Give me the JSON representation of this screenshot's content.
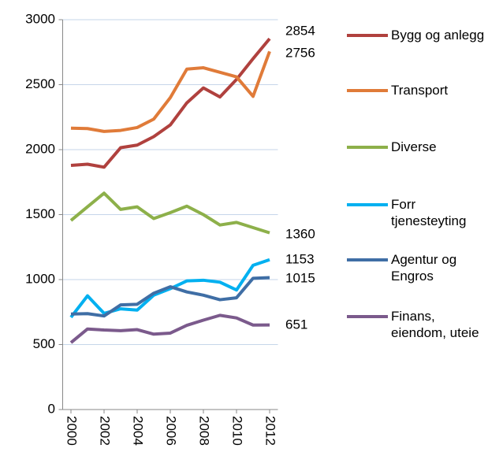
{
  "chart_data": {
    "type": "line",
    "x": [
      2000,
      2001,
      2002,
      2003,
      2004,
      2005,
      2006,
      2007,
      2008,
      2009,
      2010,
      2011,
      2012
    ],
    "xlim": [
      1999.5,
      2012.5
    ],
    "xticks": [
      2000,
      2002,
      2004,
      2006,
      2008,
      2010,
      2012
    ],
    "ylim": [
      0,
      3000
    ],
    "yticks": [
      0,
      500,
      1000,
      1500,
      2000,
      2500,
      3000
    ],
    "grid": true,
    "legend": "right",
    "series": [
      {
        "name": "Bygg og anlegg",
        "color": "#b0413e",
        "values": [
          1879,
          1888,
          1865,
          2015,
          2035,
          2100,
          2190,
          2360,
          2475,
          2405,
          2540,
          2700,
          2854
        ]
      },
      {
        "name": "Transport",
        "color": "#e07b39",
        "values": [
          2165,
          2162,
          2140,
          2148,
          2170,
          2235,
          2400,
          2620,
          2630,
          2595,
          2560,
          2410,
          2756
        ]
      },
      {
        "name": "Diverse",
        "color": "#8db04a",
        "values": [
          1455,
          1560,
          1665,
          1540,
          1560,
          1470,
          1515,
          1565,
          1500,
          1420,
          1440,
          1400,
          1360
        ]
      },
      {
        "name": "Forr tjenesteyting",
        "color": "#00b0f0",
        "values": [
          710,
          875,
          740,
          775,
          765,
          880,
          930,
          990,
          995,
          980,
          920,
          1110,
          1153
        ]
      },
      {
        "name": "Agentur og Engros",
        "color": "#3f6ea5",
        "values": [
          735,
          738,
          720,
          805,
          810,
          895,
          945,
          905,
          880,
          845,
          860,
          1010,
          1015
        ]
      },
      {
        "name": "Finans, eiendom, uteie",
        "color": "#7b5a8c",
        "values": [
          515,
          620,
          612,
          607,
          615,
          580,
          588,
          648,
          688,
          725,
          705,
          650,
          651
        ]
      }
    ]
  }
}
